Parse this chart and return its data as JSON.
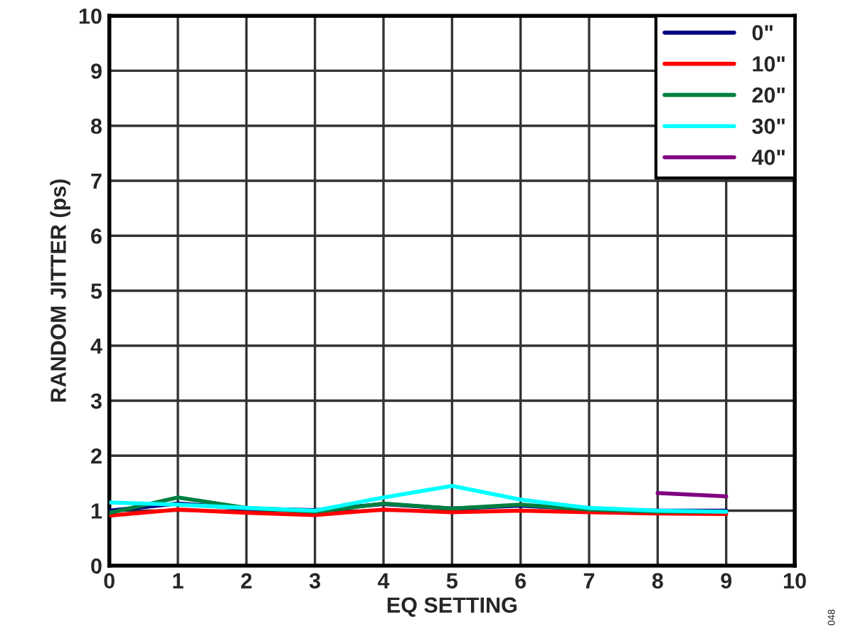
{
  "chart_data": {
    "type": "line",
    "xlabel": "EQ SETTING",
    "ylabel": "RANDOM JITTER (ps)",
    "x": [
      0,
      1,
      2,
      3,
      4,
      5,
      6,
      7,
      8,
      9
    ],
    "series": [
      {
        "name": "0\"",
        "color": "#000080",
        "values": [
          1.0,
          1.13,
          1.04,
          1.01,
          1.12,
          1.04,
          1.09,
          1.03,
          1.0,
          1.0
        ]
      },
      {
        "name": "10\"",
        "color": "#ff0000",
        "values": [
          0.91,
          1.02,
          0.96,
          0.92,
          1.02,
          0.97,
          1.0,
          0.97,
          0.95,
          0.94
        ]
      },
      {
        "name": "20\"",
        "color": "#008040",
        "values": [
          0.96,
          1.24,
          1.05,
          0.98,
          1.13,
          1.04,
          1.11,
          1.02,
          0.98,
          0.98
        ]
      },
      {
        "name": "30\"",
        "color": "#00ffff",
        "values": [
          1.15,
          1.11,
          1.05,
          1.0,
          1.24,
          1.45,
          1.2,
          1.05,
          1.0,
          0.98
        ]
      },
      {
        "name": "40\"",
        "color": "#800080",
        "values": [
          null,
          null,
          null,
          null,
          null,
          null,
          null,
          null,
          1.32,
          1.26
        ]
      }
    ],
    "xlim": [
      0,
      10
    ],
    "ylim": [
      0,
      10
    ],
    "xticks": [
      0,
      1,
      2,
      3,
      4,
      5,
      6,
      7,
      8,
      9,
      10
    ],
    "yticks": [
      0,
      1,
      2,
      3,
      4,
      5,
      6,
      7,
      8,
      9,
      10
    ],
    "grid": true,
    "legend": "top right",
    "annotations": [
      "048"
    ]
  }
}
